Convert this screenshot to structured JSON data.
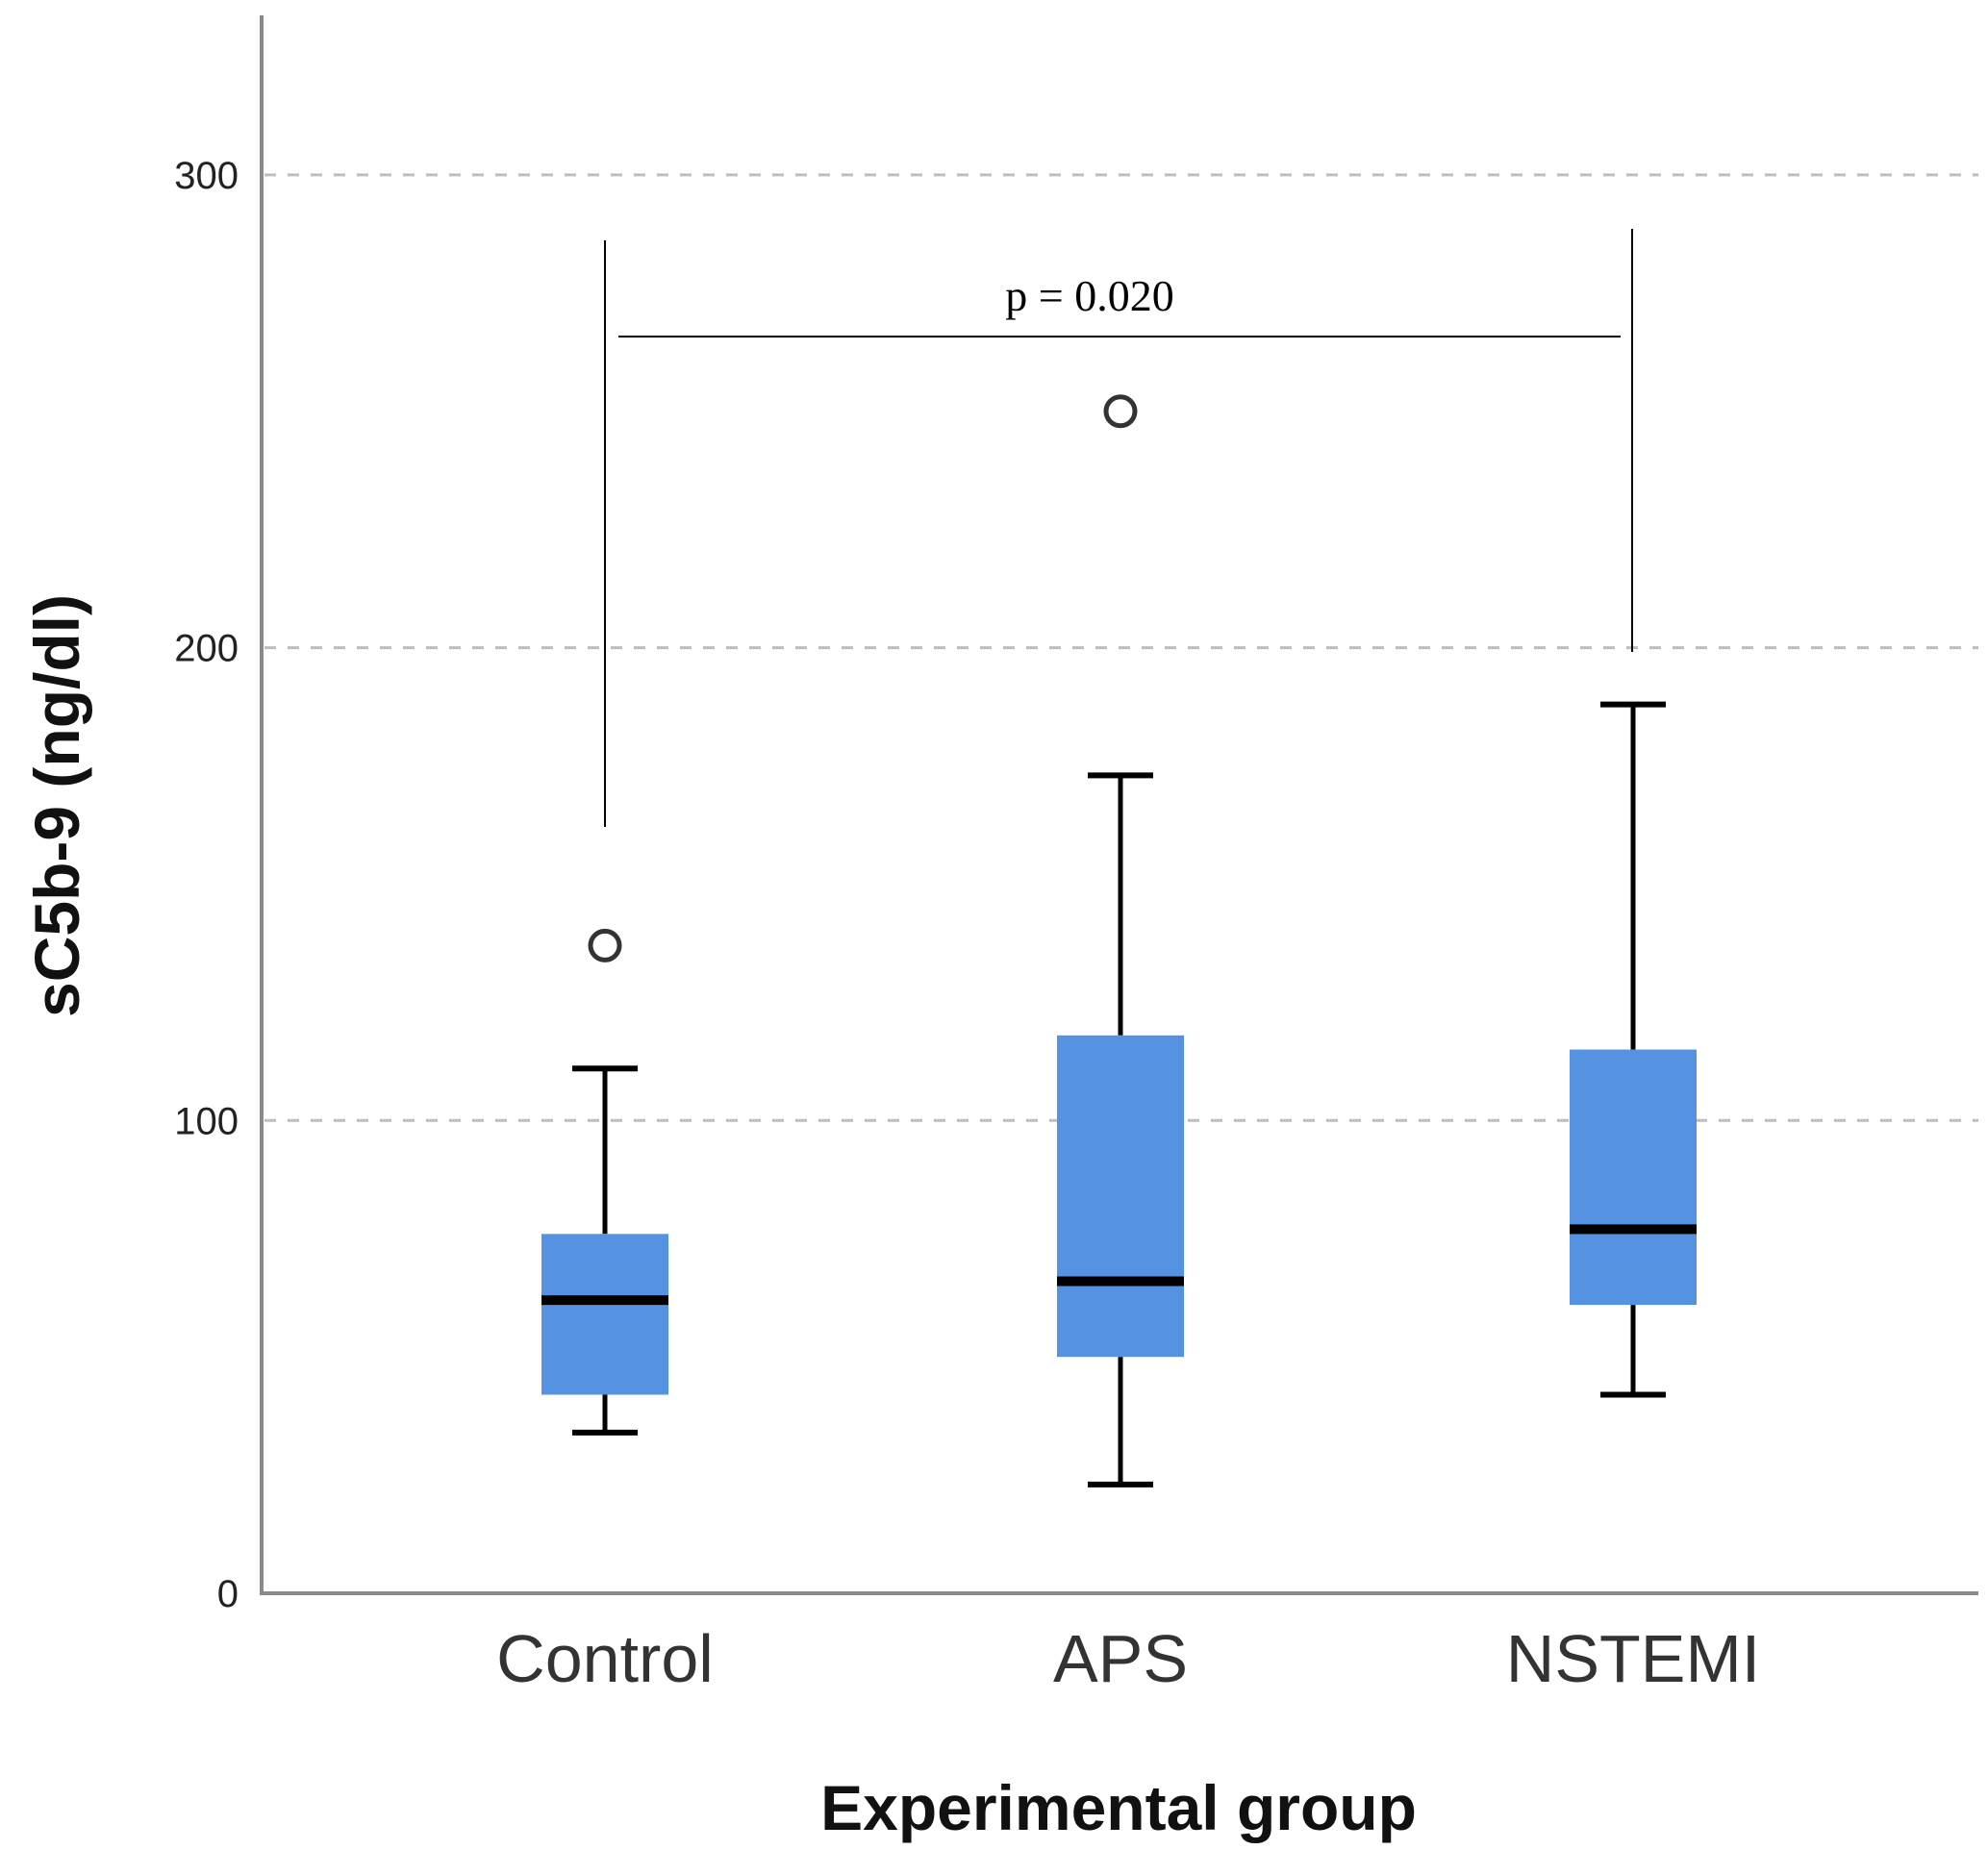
{
  "chart_data": {
    "type": "box",
    "xlabel": "Experimental group",
    "ylabel": "sC5b-9 (ng/dl)",
    "ylim": [
      0,
      330
    ],
    "yticks": [
      0,
      100,
      200,
      300
    ],
    "grid": "horizontal dashed at 100, 200, 300",
    "categories": [
      "Control",
      "APS",
      "NSTEMI"
    ],
    "boxes": [
      {
        "category": "Control",
        "whisker_low": 34,
        "q1": 42,
        "median": 62,
        "q3": 76,
        "whisker_high": 111,
        "outliers": [
          137
        ]
      },
      {
        "category": "APS",
        "whisker_low": 23,
        "q1": 50,
        "median": 66,
        "q3": 118,
        "whisker_high": 173,
        "outliers": [
          250
        ]
      },
      {
        "category": "NSTEMI",
        "whisker_low": 42,
        "q1": 61,
        "median": 77,
        "q3": 115,
        "whisker_high": 188,
        "outliers": []
      }
    ],
    "annotations": [
      {
        "text": "p = 0.020",
        "between": [
          "Control",
          "NSTEMI"
        ]
      }
    ],
    "colors": {
      "box_fill": "#5592e2",
      "median": "#000000",
      "grid": "#bdbdbd",
      "axis": "#888888"
    }
  }
}
